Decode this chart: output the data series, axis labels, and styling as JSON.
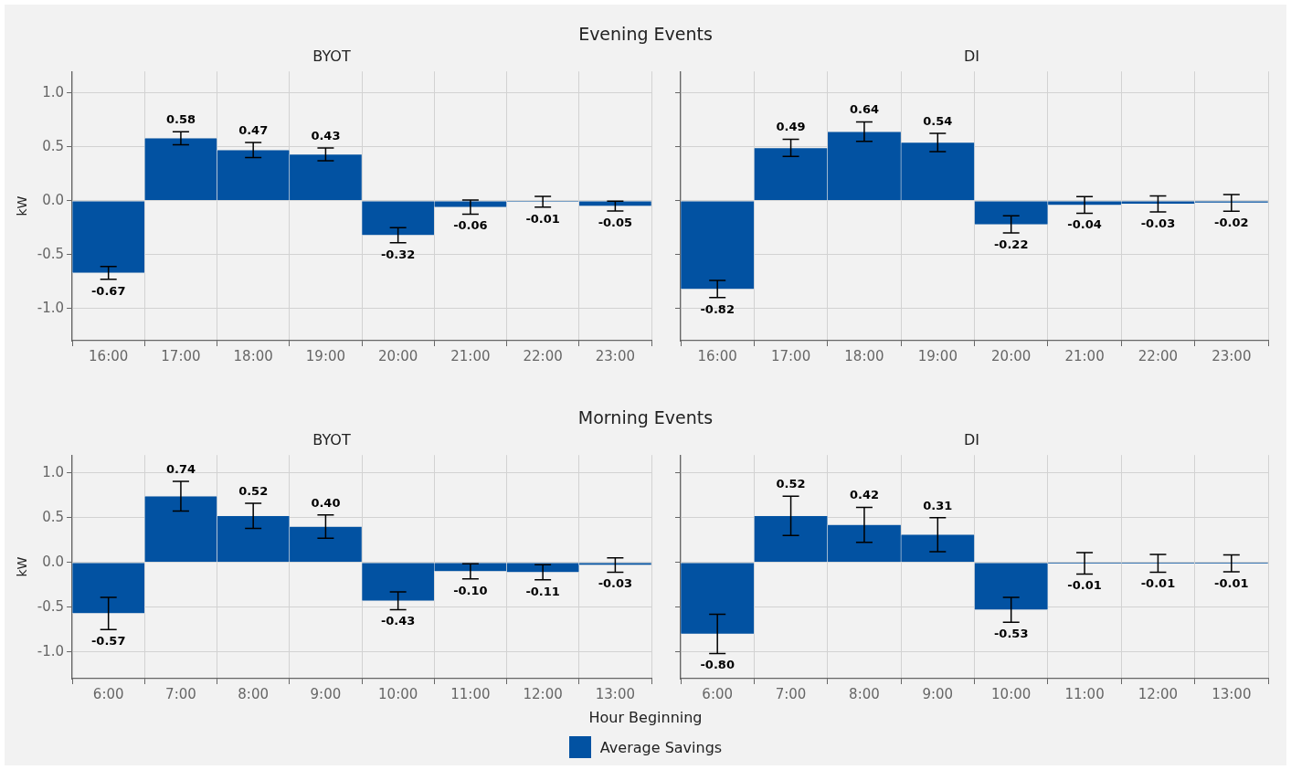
{
  "chart_data": [
    {
      "type": "bar",
      "title": "Evening Events",
      "subtitle": "BYOT",
      "ylabel": "kW",
      "categories": [
        "16:00",
        "17:00",
        "18:00",
        "19:00",
        "20:00",
        "21:00",
        "22:00",
        "23:00"
      ],
      "series": [
        {
          "color": "#0252a2",
          "values": [
            -0.67,
            0.58,
            0.47,
            0.43,
            -0.32,
            -0.06,
            -0.01,
            -0.05
          ],
          "errors": [
            0.06,
            0.06,
            0.07,
            0.06,
            0.07,
            0.065,
            0.05,
            0.045
          ],
          "value_labels": [
            "-0.67",
            "0.58",
            "0.47",
            "0.43",
            "-0.32",
            "-0.06",
            "-0.01",
            "-0.05"
          ]
        }
      ],
      "ylim": [
        -1.3,
        1.2
      ],
      "yticks": [
        {
          "value": -1,
          "label": "-1.0"
        },
        {
          "value": -0.5,
          "label": "-0.5"
        },
        {
          "value": 0,
          "label": "0.0"
        },
        {
          "value": 0.5,
          "label": "0.5"
        },
        {
          "value": 1,
          "label": "1.0"
        }
      ],
      "grid": true
    },
    {
      "type": "bar",
      "subtitle": "DI",
      "categories": [
        "16:00",
        "17:00",
        "18:00",
        "19:00",
        "20:00",
        "21:00",
        "22:00",
        "23:00"
      ],
      "series": [
        {
          "color": "#0252a2",
          "values": [
            -0.82,
            0.49,
            0.64,
            0.54,
            -0.22,
            -0.04,
            -0.03,
            -0.02
          ],
          "errors": [
            0.08,
            0.08,
            0.09,
            0.085,
            0.08,
            0.077,
            0.075,
            0.077
          ],
          "value_labels": [
            "-0.82",
            "0.49",
            "0.64",
            "0.54",
            "-0.22",
            "-0.04",
            "-0.03",
            "-0.02"
          ]
        }
      ],
      "ylim": [
        -1.3,
        1.2
      ],
      "yticks": [
        -1,
        -0.5,
        0,
        0.5,
        1
      ],
      "grid": true,
      "tick_labels": "x"
    },
    {
      "type": "bar",
      "title": "Morning Events",
      "subtitle": "BYOT",
      "ylabel": "kW",
      "xlabel": "Hour Beginning",
      "categories": [
        "6:00",
        "7:00",
        "8:00",
        "9:00",
        "10:00",
        "11:00",
        "12:00",
        "13:00"
      ],
      "series": [
        {
          "color": "#0252a2",
          "values": [
            -0.57,
            0.74,
            0.52,
            0.4,
            -0.43,
            -0.1,
            -0.11,
            -0.03
          ],
          "errors": [
            0.18,
            0.165,
            0.14,
            0.13,
            0.1,
            0.085,
            0.085,
            0.08
          ],
          "value_labels": [
            "-0.57",
            "0.74",
            "0.52",
            "0.40",
            "-0.43",
            "-0.10",
            "-0.11",
            "-0.03"
          ]
        }
      ],
      "ylim": [
        -1.3,
        1.2
      ],
      "yticks": [
        {
          "value": -1,
          "label": "-1.0"
        },
        {
          "value": -0.5,
          "label": "-0.5"
        },
        {
          "value": 0,
          "label": "0.0"
        },
        {
          "value": 0.5,
          "label": "0.5"
        },
        {
          "value": 1,
          "label": "1.0"
        }
      ],
      "grid": true
    },
    {
      "type": "bar",
      "subtitle": "DI",
      "categories": [
        "6:00",
        "7:00",
        "8:00",
        "9:00",
        "10:00",
        "11:00",
        "12:00",
        "13:00"
      ],
      "series": [
        {
          "name": "Average Savings",
          "color": "#0252a2",
          "values": [
            -0.8,
            0.52,
            0.42,
            0.31,
            -0.53,
            -0.01,
            -0.01,
            -0.01
          ],
          "errors": [
            0.22,
            0.22,
            0.195,
            0.19,
            0.14,
            0.12,
            0.1,
            0.095
          ],
          "value_labels": [
            "-0.80",
            "0.52",
            "0.42",
            "0.31",
            "-0.53",
            "-0.01",
            "-0.01",
            "-0.01"
          ]
        }
      ],
      "ylim": [
        -1.3,
        1.2
      ],
      "yticks": [
        -1,
        -0.5,
        0,
        0.5,
        1
      ],
      "grid": true,
      "tick_labels": "x",
      "legend": "bottom"
    }
  ]
}
